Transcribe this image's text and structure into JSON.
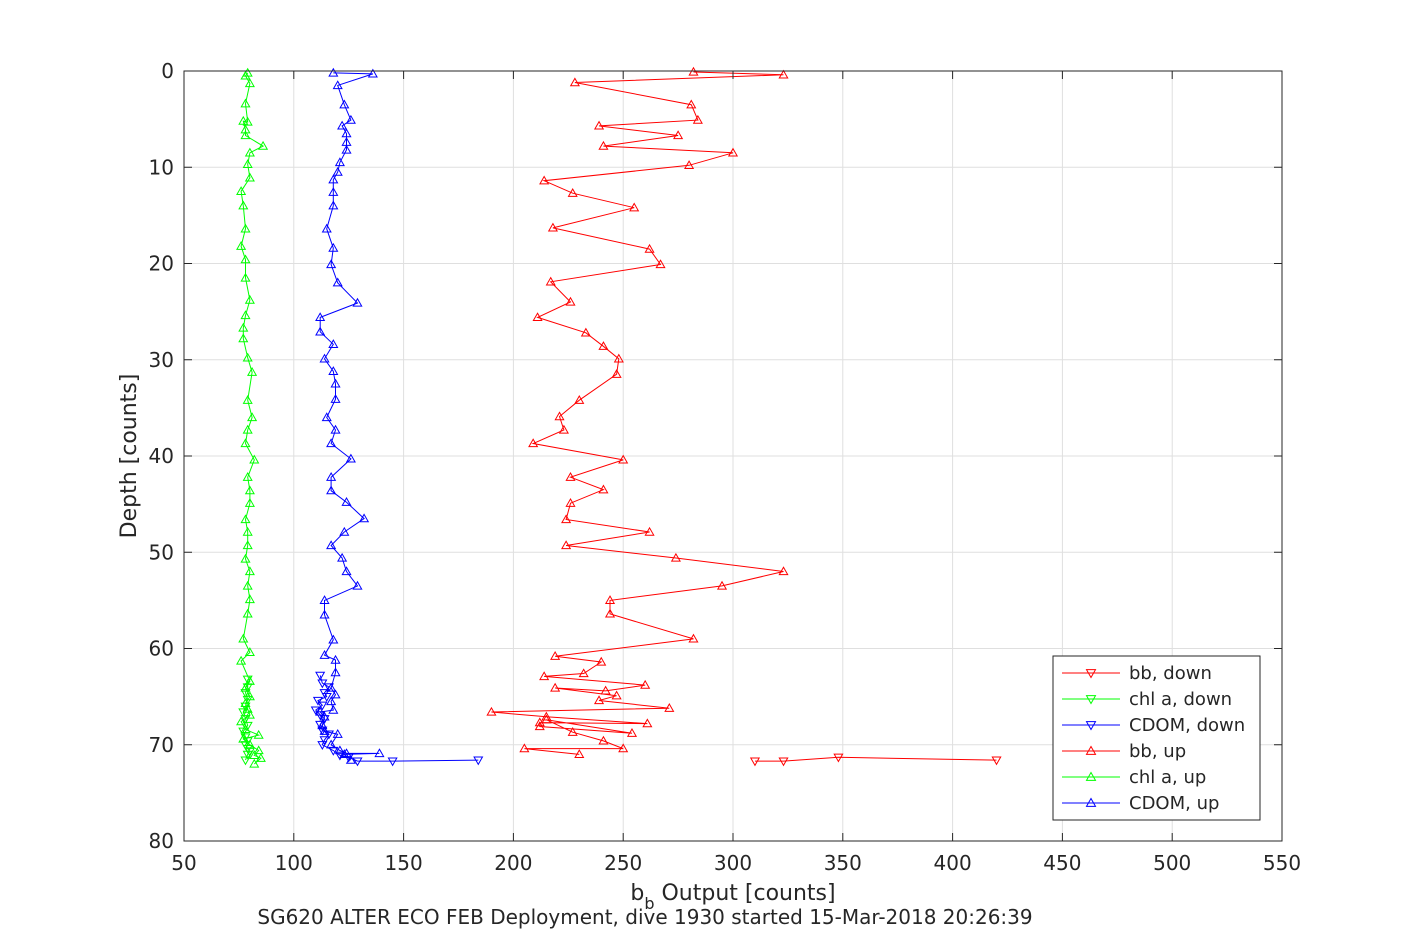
{
  "chart_data": {
    "type": "line",
    "caption": "SG620 ALTER ECO FEB Deployment, dive 1930 started 15-Mar-2018 20:26:39",
    "xlabel_main": "b",
    "xlabel_sub": "b",
    "xlabel_rest": " Output [counts]",
    "ylabel": "Depth [counts]",
    "xlim": [
      50,
      550
    ],
    "ylim": [
      0,
      80
    ],
    "y_reversed": true,
    "grid": true,
    "legend_position": "bottom-right",
    "x_ticks": [
      "50",
      "100",
      "150",
      "200",
      "250",
      "300",
      "350",
      "400",
      "450",
      "500",
      "550"
    ],
    "y_ticks": [
      "0",
      "10",
      "20",
      "30",
      "40",
      "50",
      "60",
      "70",
      "80"
    ],
    "series": [
      {
        "name": "bb, down",
        "color": "#ff0000",
        "marker": "triangle-down",
        "points": [
          [
            420,
            71.6
          ],
          [
            348,
            71.3
          ],
          [
            323,
            71.7
          ],
          [
            310,
            71.7
          ]
        ]
      },
      {
        "name": "chl a, down",
        "color": "#00ff00",
        "marker": "triangle-down",
        "points": [
          [
            78,
            71.6
          ],
          [
            79,
            71.0
          ],
          [
            80,
            70.7
          ],
          [
            79,
            70.4
          ],
          [
            78,
            70.0
          ],
          [
            79,
            69.6
          ],
          [
            78,
            69.2
          ],
          [
            77,
            68.6
          ],
          [
            79,
            68.0
          ],
          [
            78,
            67.3
          ],
          [
            77,
            66.6
          ],
          [
            78,
            66.0
          ],
          [
            79,
            65.3
          ],
          [
            78,
            64.6
          ],
          [
            79,
            64.0
          ],
          [
            79,
            63.2
          ]
        ]
      },
      {
        "name": "CDOM, down",
        "color": "#0000ff",
        "marker": "triangle-down",
        "points": [
          [
            184,
            71.6
          ],
          [
            145,
            71.7
          ],
          [
            129,
            71.7
          ],
          [
            125,
            71.3
          ],
          [
            121,
            71.1
          ],
          [
            118,
            70.6
          ],
          [
            113,
            70.0
          ],
          [
            114,
            69.5
          ],
          [
            116,
            68.9
          ],
          [
            113,
            68.5
          ],
          [
            112,
            67.9
          ],
          [
            114,
            67.3
          ],
          [
            112,
            66.9
          ],
          [
            110,
            66.4
          ],
          [
            113,
            65.9
          ],
          [
            111,
            65.4
          ],
          [
            115,
            65.0
          ],
          [
            114,
            64.6
          ],
          [
            116,
            64.0
          ],
          [
            113,
            63.6
          ],
          [
            112,
            62.8
          ]
        ]
      },
      {
        "name": "bb, up",
        "color": "#ff0000",
        "marker": "triangle-up",
        "points": [
          [
            282,
            0.1
          ],
          [
            323,
            0.4
          ],
          [
            228,
            1.2
          ],
          [
            281,
            3.5
          ],
          [
            284,
            5.1
          ],
          [
            239,
            5.7
          ],
          [
            275,
            6.7
          ],
          [
            241,
            7.8
          ],
          [
            300,
            8.5
          ],
          [
            280,
            9.8
          ],
          [
            214,
            11.4
          ],
          [
            227,
            12.7
          ],
          [
            255,
            14.2
          ],
          [
            218,
            16.3
          ],
          [
            262,
            18.5
          ],
          [
            267,
            20.1
          ],
          [
            217,
            21.9
          ],
          [
            226,
            24.0
          ],
          [
            211,
            25.6
          ],
          [
            233,
            27.2
          ],
          [
            241,
            28.6
          ],
          [
            248,
            29.9
          ],
          [
            247,
            31.5
          ],
          [
            230,
            34.2
          ],
          [
            221,
            35.9
          ],
          [
            223,
            37.3
          ],
          [
            209,
            38.7
          ],
          [
            250,
            40.4
          ],
          [
            226,
            42.2
          ],
          [
            241,
            43.5
          ],
          [
            226,
            44.9
          ],
          [
            224,
            46.6
          ],
          [
            262,
            47.9
          ],
          [
            224,
            49.3
          ],
          [
            274,
            50.6
          ],
          [
            323,
            52.0
          ],
          [
            295,
            53.5
          ],
          [
            244,
            55.0
          ],
          [
            244,
            56.4
          ],
          [
            282,
            59.0
          ],
          [
            219,
            60.8
          ],
          [
            240,
            61.4
          ],
          [
            232,
            62.6
          ],
          [
            214,
            62.9
          ],
          [
            260,
            63.8
          ],
          [
            242,
            64.4
          ],
          [
            219,
            64.1
          ],
          [
            247,
            64.9
          ],
          [
            239,
            65.4
          ],
          [
            271,
            66.2
          ],
          [
            190,
            66.6
          ],
          [
            215,
            67.1
          ],
          [
            261,
            67.8
          ],
          [
            212,
            67.7
          ],
          [
            212,
            68.1
          ],
          [
            254,
            68.8
          ],
          [
            215,
            67.4
          ],
          [
            227,
            68.7
          ],
          [
            241,
            69.6
          ],
          [
            250,
            70.4
          ],
          [
            205,
            70.4
          ],
          [
            230,
            71.0
          ]
        ]
      },
      {
        "name": "chl a, up",
        "color": "#00ff00",
        "marker": "triangle-up",
        "points": [
          [
            79,
            0.2
          ],
          [
            78,
            0.5
          ],
          [
            80,
            1.3
          ],
          [
            78,
            3.4
          ],
          [
            79,
            5.3
          ],
          [
            77,
            5.2
          ],
          [
            78,
            6.1
          ],
          [
            78,
            6.7
          ],
          [
            86,
            7.8
          ],
          [
            80,
            8.5
          ],
          [
            79,
            9.7
          ],
          [
            80,
            11.1
          ],
          [
            76,
            12.5
          ],
          [
            77,
            14.0
          ],
          [
            78,
            16.4
          ],
          [
            76,
            18.2
          ],
          [
            78,
            19.6
          ],
          [
            78,
            21.5
          ],
          [
            80,
            23.8
          ],
          [
            78,
            25.4
          ],
          [
            77,
            26.7
          ],
          [
            77,
            27.8
          ],
          [
            79,
            29.8
          ],
          [
            81,
            31.3
          ],
          [
            79,
            34.2
          ],
          [
            81,
            36.0
          ],
          [
            79,
            37.3
          ],
          [
            78,
            38.7
          ],
          [
            82,
            40.4
          ],
          [
            79,
            42.2
          ],
          [
            80,
            43.6
          ],
          [
            80,
            44.9
          ],
          [
            78,
            46.6
          ],
          [
            79,
            47.9
          ],
          [
            79,
            49.3
          ],
          [
            78,
            50.7
          ],
          [
            80,
            52.0
          ],
          [
            79,
            53.5
          ],
          [
            80,
            54.9
          ],
          [
            79,
            56.4
          ],
          [
            77,
            59.0
          ],
          [
            80,
            60.4
          ],
          [
            76,
            61.3
          ],
          [
            80,
            63.4
          ],
          [
            78,
            64.1
          ],
          [
            80,
            65.0
          ],
          [
            78,
            65.7
          ],
          [
            79,
            66.3
          ],
          [
            80,
            66.9
          ],
          [
            76,
            67.6
          ],
          [
            78,
            68.4
          ],
          [
            84,
            69.0
          ],
          [
            77,
            69.4
          ],
          [
            80,
            70.0
          ],
          [
            84,
            70.6
          ],
          [
            82,
            71.1
          ],
          [
            85,
            71.4
          ],
          [
            82,
            72.0
          ]
        ]
      },
      {
        "name": "CDOM, up",
        "color": "#0000ff",
        "marker": "triangle-up",
        "points": [
          [
            118,
            0.2
          ],
          [
            136,
            0.3
          ],
          [
            120,
            1.5
          ],
          [
            123,
            3.5
          ],
          [
            126,
            5.1
          ],
          [
            122,
            5.7
          ],
          [
            124,
            6.5
          ],
          [
            124,
            7.4
          ],
          [
            124,
            8.2
          ],
          [
            121,
            9.5
          ],
          [
            120,
            10.5
          ],
          [
            118,
            11.3
          ],
          [
            118,
            12.6
          ],
          [
            118,
            14.0
          ],
          [
            115,
            16.4
          ],
          [
            118,
            18.4
          ],
          [
            117,
            20.1
          ],
          [
            120,
            22.0
          ],
          [
            129,
            24.1
          ],
          [
            112,
            25.6
          ],
          [
            112,
            27.1
          ],
          [
            118,
            28.4
          ],
          [
            114,
            29.9
          ],
          [
            118,
            31.2
          ],
          [
            119,
            32.5
          ],
          [
            119,
            34.1
          ],
          [
            115,
            36.0
          ],
          [
            119,
            37.3
          ],
          [
            117,
            38.7
          ],
          [
            126,
            40.3
          ],
          [
            117,
            42.2
          ],
          [
            117,
            43.6
          ],
          [
            124,
            44.8
          ],
          [
            132,
            46.5
          ],
          [
            123,
            47.9
          ],
          [
            117,
            49.3
          ],
          [
            122,
            50.6
          ],
          [
            124,
            52.0
          ],
          [
            129,
            53.5
          ],
          [
            114,
            55.0
          ],
          [
            114,
            56.5
          ],
          [
            118,
            59.1
          ],
          [
            114,
            60.7
          ],
          [
            119,
            61.2
          ],
          [
            119,
            62.5
          ],
          [
            117,
            64.1
          ],
          [
            119,
            64.8
          ],
          [
            117,
            65.5
          ],
          [
            118,
            66.4
          ],
          [
            112,
            66.6
          ],
          [
            114,
            67.1
          ],
          [
            113,
            68.0
          ],
          [
            114,
            68.6
          ],
          [
            120,
            68.9
          ],
          [
            117,
            70.0
          ],
          [
            121,
            70.6
          ],
          [
            124,
            70.9
          ],
          [
            139,
            70.9
          ],
          [
            123,
            71.0
          ],
          [
            126,
            71.6
          ]
        ]
      }
    ]
  }
}
